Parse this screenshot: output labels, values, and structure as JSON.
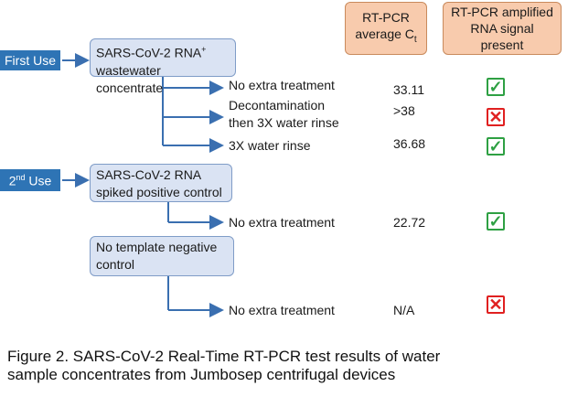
{
  "headers": {
    "ct_line1": "RT-PCR",
    "ct_line2": "average C",
    "ct_sub": "t",
    "signal_line1": "RT-PCR amplified",
    "signal_line2": "RNA signal",
    "signal_line3": "present"
  },
  "uses": {
    "first_label": "First Use",
    "second_main": "2",
    "second_sup": "nd",
    "second_rest": " Use"
  },
  "nodes": {
    "sample1_line1": "SARS-CoV-2 RNA",
    "sample1_sup": "+",
    "sample1_line2": "wastewater concentrate",
    "sample2_line1": "SARS-CoV-2 RNA",
    "sample2_line2": "spiked positive control",
    "sample3_line1": "No template negative",
    "sample3_line2": "control"
  },
  "rows": [
    {
      "treatment": "No extra treatment",
      "ct": "33.11",
      "signal_icon": "check-icon"
    },
    {
      "treatment_line1": "Decontamination",
      "treatment_line2": "then 3X water rinse",
      "ct": ">38",
      "signal_icon": "cross-icon"
    },
    {
      "treatment": "3X water rinse",
      "ct": "36.68",
      "signal_icon": "check-icon"
    },
    {
      "treatment": "No extra treatment",
      "ct": "22.72",
      "signal_icon": "check-icon"
    },
    {
      "treatment": "No extra treatment",
      "ct": "N/A",
      "signal_icon": "cross-icon"
    }
  ],
  "icons": {
    "check": "✓",
    "cross": "✕"
  },
  "colors": {
    "check": "#2ea043",
    "cross": "#e02020",
    "header_fill": "#f8cbad",
    "node_fill": "#dae3f3",
    "use_label_fill": "#2e74b5",
    "arrow": "#3a6fb0"
  },
  "caption": {
    "line1": "Figure 2. SARS-CoV-2 Real-Time RT-PCR test results of water",
    "line2": "sample concentrates from Jumbosep centrifugal devices"
  }
}
